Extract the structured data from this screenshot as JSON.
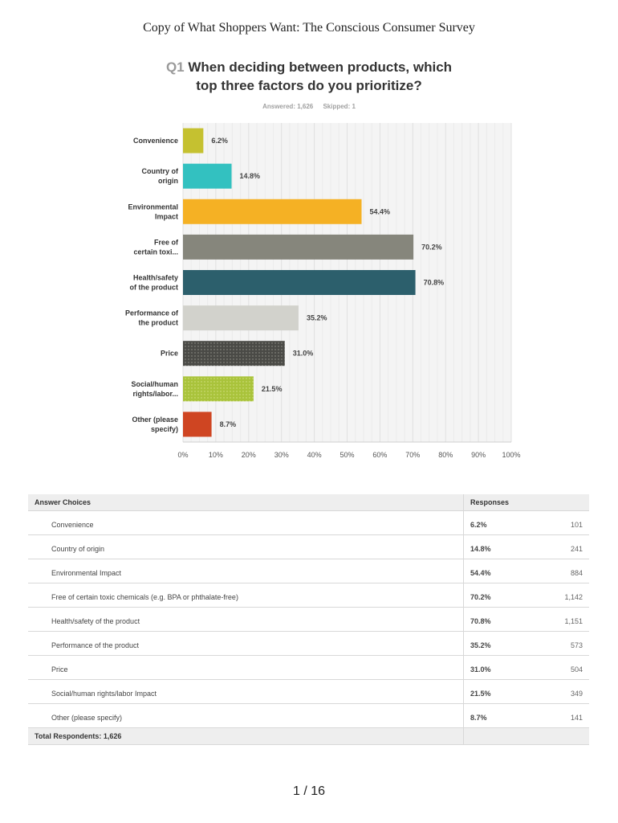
{
  "document": {
    "title": "Copy of What Shoppers Want: The Conscious Consumer Survey",
    "page_indicator": "1 / 16"
  },
  "question": {
    "number": "Q1",
    "text_line1": "When deciding between products, which",
    "text_line2": "top three factors do you prioritize?",
    "answered": "Answered: 1,626",
    "skipped": "Skipped: 1"
  },
  "chart_data": {
    "type": "bar",
    "orientation": "horizontal",
    "categories": [
      [
        "Convenience"
      ],
      [
        "Country of",
        "origin"
      ],
      [
        "Environmental",
        "Impact"
      ],
      [
        "Free of",
        "certain toxi..."
      ],
      [
        "Health/safety",
        "of the product"
      ],
      [
        "Performance of",
        "the product"
      ],
      [
        "Price"
      ],
      [
        "Social/human",
        "rights/labor..."
      ],
      [
        "Other (please",
        "specify)"
      ]
    ],
    "values": [
      6.2,
      14.8,
      54.4,
      70.2,
      70.8,
      35.2,
      31.0,
      21.5,
      8.7
    ],
    "value_labels": [
      "6.2%",
      "14.8%",
      "54.4%",
      "70.2%",
      "70.8%",
      "35.2%",
      "31.0%",
      "21.5%",
      "8.7%"
    ],
    "colors": [
      "#c5c130",
      "#33c1c0",
      "#f5b124",
      "#86867c",
      "#2c5f6c",
      "#d2d2cc",
      "#4a4a46",
      "#a9c33b",
      "#cf4522"
    ],
    "patterns": [
      "solid",
      "solid",
      "solid",
      "solid",
      "solid",
      "solid",
      "dots",
      "dots",
      "solid"
    ],
    "xlim": [
      0,
      100
    ],
    "x_ticks": [
      "0%",
      "10%",
      "20%",
      "30%",
      "40%",
      "50%",
      "60%",
      "70%",
      "80%",
      "90%",
      "100%"
    ],
    "grid": true,
    "grid_color": "#e6e6e6",
    "background_color": "#f4f4f4"
  },
  "table": {
    "header_choices": "Answer Choices",
    "header_responses": "Responses",
    "rows": [
      {
        "choice": "Convenience",
        "pct": "6.2%",
        "count": "101"
      },
      {
        "choice": "Country of origin",
        "pct": "14.8%",
        "count": "241"
      },
      {
        "choice": "Environmental Impact",
        "pct": "54.4%",
        "count": "884"
      },
      {
        "choice": "Free of certain toxic chemicals (e.g. BPA or phthalate-free)",
        "pct": "70.2%",
        "count": "1,142"
      },
      {
        "choice": "Health/safety of the product",
        "pct": "70.8%",
        "count": "1,151"
      },
      {
        "choice": "Performance of the product",
        "pct": "35.2%",
        "count": "573"
      },
      {
        "choice": "Price",
        "pct": "31.0%",
        "count": "504"
      },
      {
        "choice": "Social/human rights/labor Impact",
        "pct": "21.5%",
        "count": "349"
      },
      {
        "choice": "Other (please specify)",
        "pct": "8.7%",
        "count": "141"
      }
    ],
    "total_label": "Total Respondents: 1,626"
  }
}
